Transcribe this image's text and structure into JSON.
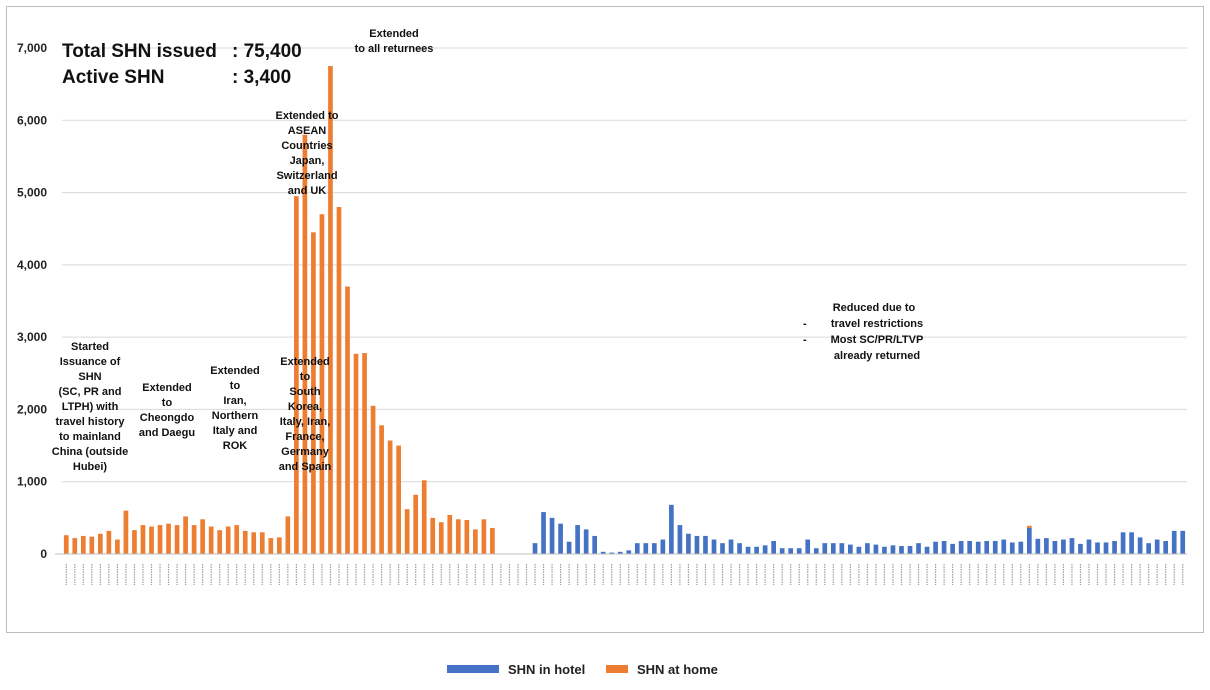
{
  "chart_data": {
    "type": "bar",
    "stacked": true,
    "ylim": [
      0,
      7000
    ],
    "yticks": [
      0,
      1000,
      2000,
      3000,
      4000,
      5000,
      6000,
      7000
    ],
    "ytick_labels": [
      "0",
      "1,000",
      "2,000",
      "3,000",
      "4,000",
      "5,000",
      "6,000",
      "7,000"
    ],
    "grid": true,
    "legend_position": "bottom",
    "stats": [
      {
        "label": "Total SHN issued",
        "value": ": 75,400"
      },
      {
        "label": "Active SHN",
        "value": ": 3,400"
      }
    ],
    "series": [
      {
        "name": "SHN in hotel",
        "color": "#4472c4",
        "values": [
          0,
          0,
          0,
          0,
          0,
          0,
          0,
          0,
          0,
          0,
          0,
          0,
          0,
          0,
          0,
          0,
          0,
          0,
          0,
          0,
          0,
          0,
          0,
          0,
          0,
          0,
          0,
          0,
          0,
          0,
          0,
          0,
          0,
          0,
          0,
          0,
          0,
          0,
          0,
          0,
          0,
          0,
          0,
          0,
          0,
          0,
          0,
          0,
          0,
          0,
          0,
          0,
          0,
          0,
          0,
          150,
          580,
          500,
          420,
          170,
          400,
          340,
          250,
          30,
          20,
          30,
          50,
          150,
          150,
          150,
          200,
          680,
          400,
          280,
          250,
          250,
          200,
          150,
          200,
          150,
          100,
          100,
          120,
          180,
          80,
          80,
          80,
          200,
          80,
          150,
          150,
          150,
          130,
          100,
          150,
          130,
          100,
          120,
          110,
          110,
          150,
          100,
          170,
          180,
          140,
          180,
          180,
          170,
          180,
          180,
          200,
          160,
          170,
          360,
          210,
          220,
          180,
          200,
          220,
          140,
          200,
          160,
          160,
          180,
          300,
          300,
          230,
          150,
          200,
          180,
          320,
          320
        ]
      },
      {
        "name": "SHN at home",
        "color": "#ed7d31",
        "values": [
          260,
          220,
          250,
          240,
          280,
          320,
          200,
          600,
          330,
          400,
          380,
          400,
          420,
          400,
          520,
          400,
          480,
          380,
          330,
          380,
          400,
          320,
          300,
          300,
          220,
          230,
          520,
          4950,
          5800,
          4450,
          4700,
          6750,
          4800,
          3700,
          2770,
          2780,
          2050,
          1780,
          1570,
          1500,
          620,
          820,
          1020,
          500,
          440,
          540,
          480,
          470,
          340,
          480,
          360,
          0,
          0,
          0,
          0,
          0,
          0,
          0,
          0,
          0,
          0,
          0,
          0,
          0,
          0,
          0,
          0,
          0,
          0,
          0,
          0,
          0,
          0,
          0,
          0,
          0,
          0,
          0,
          0,
          0,
          0,
          0,
          0,
          0,
          0,
          0,
          0,
          0,
          0,
          0,
          0,
          0,
          0,
          0,
          0,
          0,
          0,
          0,
          0,
          0,
          0,
          0,
          0,
          0,
          0,
          0,
          0,
          0,
          0,
          0,
          0,
          0,
          0,
          30,
          0,
          0,
          0,
          0,
          0,
          0,
          0,
          0,
          0,
          0,
          0,
          0,
          0,
          0,
          0,
          0,
          0,
          0
        ]
      }
    ],
    "annotations": [
      {
        "lines": [
          "Started",
          "Issuance of",
          "SHN",
          "(SC, PR and",
          "LTPH) with",
          "travel history",
          "to mainland",
          "China (outside",
          "Hubei)"
        ]
      },
      {
        "lines": [
          "Extended",
          "to",
          "Cheongdo",
          "and Daegu"
        ]
      },
      {
        "lines": [
          "Extended",
          "to",
          "Iran,",
          "Northern",
          "Italy and",
          "ROK"
        ]
      },
      {
        "lines": [
          "Extended",
          "to",
          "South",
          "Korea,",
          "Italy, Iran,",
          "France,",
          "Germany",
          "and Spain"
        ]
      },
      {
        "lines": [
          "Extended to",
          "ASEAN",
          "Countries",
          "Japan,",
          "Switzerland",
          "and UK"
        ]
      },
      {
        "lines": [
          "Extended",
          "to all returnees"
        ]
      },
      {
        "lines": [
          "Reduced due to",
          "travel restrictions",
          "Most SC/PR/LTVP",
          "already  returned"
        ],
        "bullets": [
          "-",
          "-"
        ]
      }
    ]
  }
}
